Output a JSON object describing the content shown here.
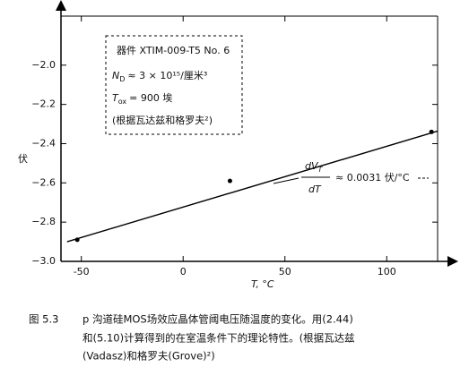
{
  "chart_data": {
    "type": "scatter",
    "xlim": [
      -60,
      125
    ],
    "ylim": [
      -3.0,
      -1.75
    ],
    "xticks": [
      -50,
      0,
      50,
      100
    ],
    "yticks": [
      {
        "value": -2.0,
        "label": "−2.0"
      },
      {
        "value": -2.2,
        "label": "−2.2"
      },
      {
        "value": -2.4,
        "label": "−2.4"
      },
      {
        "value": -2.6,
        "label": "−2.6"
      },
      {
        "value": -2.8,
        "label": "−2.8"
      },
      {
        "value": -3.0,
        "label": "−3.0"
      }
    ],
    "y_label": "伏",
    "x_label": "T, °C",
    "series": [
      {
        "style": "points",
        "color": "#000000",
        "x": [
          -52,
          23,
          122
        ],
        "values": [
          -2.89,
          -2.59,
          -2.34
        ]
      },
      {
        "style": "line",
        "color": "#000000",
        "x": [
          -57,
          125
        ],
        "values": [
          -2.9,
          -2.336
        ]
      }
    ],
    "annotations": {
      "device": "器件 XTIM-009-T5 No. 6",
      "doping_symbol": "N",
      "doping_sub": "D",
      "doping_text": "≈ 3 × 10¹⁵/厘米³",
      "oxide_symbol": "T",
      "oxide_sub": "ox",
      "oxide_text": "= 900 埃",
      "source": "(根据瓦达兹和格罗夫²)",
      "slope_num": "dV",
      "slope_num_sub": "T",
      "slope_den": "dT",
      "slope_text": "≈ 0.0031 伏/°C"
    }
  },
  "caption": {
    "label": "图 5.3",
    "line1": "p 沟道硅MOS场效应晶体管阈电压随温度的变化。用(2.44)",
    "line2": "和(5.10)计算得到的在室温条件下的理论特性。(根据瓦达兹",
    "line3": "(Vadasz)和格罗夫(Grove)²)"
  }
}
